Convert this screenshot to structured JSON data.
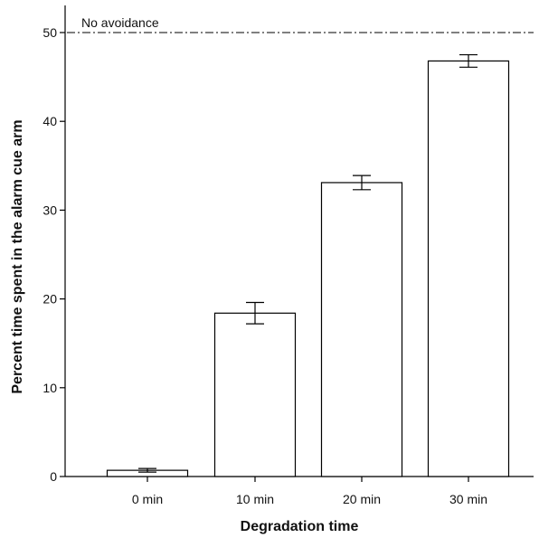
{
  "chart_data": {
    "type": "bar",
    "title": "",
    "xlabel": "Degradation time",
    "ylabel": "Percent time spent in the alarm cue arm",
    "categories": [
      "0 min",
      "10 min",
      "20 min",
      "30 min"
    ],
    "values": [
      0.7,
      18.4,
      33.1,
      46.8
    ],
    "error": [
      0.2,
      1.2,
      0.8,
      0.7
    ],
    "ylim": [
      0,
      52
    ],
    "yticks": [
      0,
      10,
      20,
      30,
      40,
      50
    ],
    "reference_line": {
      "value": 50,
      "label": "No avoidance",
      "style": "dash-dot"
    },
    "grid": false,
    "legend": "none",
    "colors": {
      "bar_fill": "#ffffff",
      "bar_stroke": "#000000",
      "axis": "#000000",
      "text": "#111111"
    }
  }
}
